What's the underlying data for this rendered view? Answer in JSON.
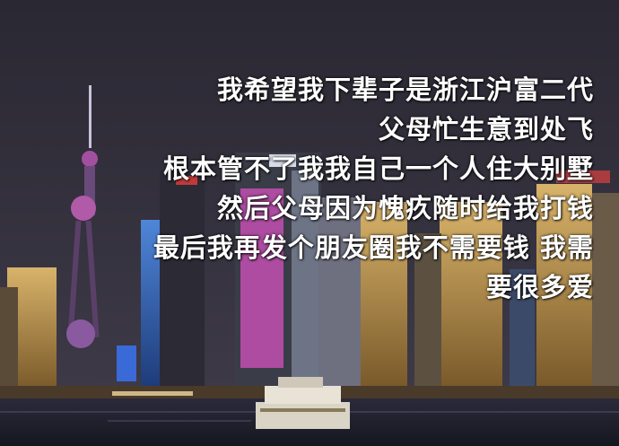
{
  "caption_lines": [
    "我希望我下辈子是浙江沪富二代",
    "父母忙生意到处飞",
    "根本管不了我我自己一个人住大别墅",
    "然后父母因为愧疚随时给我打钱",
    "最后我再发个朋友圈我不需要钱 我需",
    "要很多爱"
  ],
  "colors": {
    "sky_top": "#2a2833",
    "sky_bottom": "#3b3845",
    "water": "#1b1e2a",
    "caption_text": "#ffffff",
    "accent_neon": "#e04fb8"
  }
}
